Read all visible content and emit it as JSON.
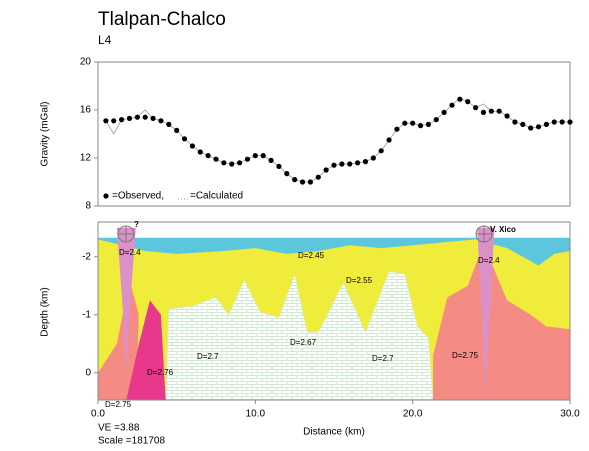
{
  "chart_data": [
    {
      "type": "scatter",
      "title": "Tlalpan-Chalco",
      "subtitle": "L4",
      "ylabel": "Gravity (mGal)",
      "xlim": [
        0,
        30
      ],
      "ylim": [
        8,
        20
      ],
      "yticks": [
        8,
        12,
        16,
        20
      ],
      "x": [
        0.5,
        1,
        1.5,
        2,
        2.5,
        3,
        3.5,
        4,
        4.5,
        5,
        5.5,
        6,
        6.5,
        7,
        7.5,
        8,
        8.5,
        9,
        9.5,
        10,
        10.5,
        11,
        11.5,
        12,
        12.5,
        13,
        13.5,
        14,
        14.5,
        15,
        15.5,
        16,
        16.5,
        17,
        17.5,
        18,
        18.5,
        19,
        19.5,
        20,
        20.5,
        21,
        21.5,
        22,
        22.5,
        23,
        23.5,
        24,
        24.5,
        25,
        25.5,
        26,
        26.5,
        27,
        27.5,
        28,
        28.5,
        29,
        29.5,
        30
      ],
      "series": [
        {
          "name": "=Observed,",
          "color": "#000000",
          "style": "dots",
          "values": [
            15.1,
            15.1,
            15.2,
            15.3,
            15.4,
            15.4,
            15.3,
            15.1,
            14.8,
            14.3,
            13.6,
            13.0,
            12.5,
            12.2,
            11.9,
            11.6,
            11.5,
            11.6,
            11.9,
            12.2,
            12.2,
            11.8,
            11.3,
            10.7,
            10.2,
            10.0,
            10.0,
            10.4,
            11.0,
            11.4,
            11.5,
            11.5,
            11.6,
            11.7,
            12.0,
            12.6,
            13.5,
            14.4,
            14.9,
            14.9,
            14.7,
            14.8,
            15.2,
            15.8,
            16.4,
            16.9,
            16.7,
            16.2,
            15.8,
            15.9,
            15.9,
            15.5,
            15.0,
            14.8,
            14.5,
            14.6,
            14.8,
            15.0,
            15.0,
            15.0
          ]
        },
        {
          "name": "=Calculated",
          "color": "#9a9a9a",
          "style": "line",
          "values": [
            15.1,
            14.0,
            15.2,
            15.3,
            15.4,
            16.0,
            15.3,
            15.1,
            14.8,
            14.3,
            13.6,
            13.0,
            12.5,
            12.2,
            11.9,
            11.6,
            11.5,
            11.6,
            11.9,
            12.2,
            12.2,
            11.8,
            11.3,
            10.7,
            10.2,
            10.0,
            10.0,
            10.4,
            11.0,
            11.4,
            11.5,
            11.5,
            11.6,
            11.7,
            12.0,
            12.6,
            13.5,
            14.4,
            14.9,
            14.9,
            14.7,
            14.8,
            15.2,
            15.8,
            16.4,
            17.0,
            16.7,
            16.2,
            16.5,
            15.9,
            15.9,
            15.5,
            15.0,
            14.8,
            14.5,
            14.6,
            14.8,
            15.0,
            15.0,
            15.0
          ]
        }
      ]
    },
    {
      "type": "section",
      "xlabel": "Distance (km)",
      "ylabel": "Depth (km)",
      "xlim": [
        0,
        30
      ],
      "ylim": [
        0.47,
        -2.6
      ],
      "xticks": [
        {
          "value": 0,
          "label": "0.0"
        },
        {
          "value": 10,
          "label": "10.0"
        },
        {
          "value": 20,
          "label": "20.0"
        },
        {
          "value": 30,
          "label": "30.0"
        }
      ],
      "yticks": [
        -2,
        -1,
        0
      ],
      "bodies": [
        {
          "color": "#5cc6dc",
          "points": [
            [
              0,
              -2.33
            ],
            [
              30,
              -2.33
            ],
            [
              30,
              0.47
            ],
            [
              0,
              0.47
            ]
          ]
        },
        {
          "color": "#f0ec3c",
          "points": [
            [
              0,
              -2.3
            ],
            [
              1.5,
              -2.2
            ],
            [
              3,
              -2.1
            ],
            [
              5,
              -2.05
            ],
            [
              8,
              -2.1
            ],
            [
              10,
              -2.15
            ],
            [
              12,
              -2.05
            ],
            [
              14,
              -2.1
            ],
            [
              16,
              -2.2
            ],
            [
              18,
              -2.15
            ],
            [
              20,
              -2.2
            ],
            [
              22,
              -2.25
            ],
            [
              24,
              -2.3
            ],
            [
              26,
              -2.15
            ],
            [
              28,
              -1.85
            ],
            [
              29,
              -2.05
            ],
            [
              30,
              -2.1
            ],
            [
              30,
              0.47
            ],
            [
              0,
              0.47
            ]
          ]
        },
        {
          "color": "hatch",
          "points": [
            [
              4.3,
              0.47
            ],
            [
              4.5,
              -1.1
            ],
            [
              6,
              -1.15
            ],
            [
              7.5,
              -1.3
            ],
            [
              8.3,
              -1.0
            ],
            [
              9.3,
              -1.6
            ],
            [
              10.3,
              -1.05
            ],
            [
              11.5,
              -0.95
            ],
            [
              12.5,
              -1.7
            ],
            [
              13.3,
              -0.7
            ],
            [
              14,
              -0.7
            ],
            [
              15.6,
              -1.55
            ],
            [
              17,
              -0.7
            ],
            [
              18.5,
              -1.75
            ],
            [
              19.5,
              -1.7
            ],
            [
              20.3,
              -0.8
            ],
            [
              21,
              -0.6
            ],
            [
              21.3,
              0.47
            ]
          ]
        },
        {
          "color": "#f48c84",
          "points": [
            [
              0,
              0.0
            ],
            [
              1.2,
              -0.5
            ],
            [
              2.0,
              -1.6
            ],
            [
              2.6,
              -1.0
            ],
            [
              2.4,
              0.47
            ],
            [
              0,
              0.47
            ]
          ]
        },
        {
          "color": "#e8388c",
          "points": [
            [
              1.8,
              0.47
            ],
            [
              2.6,
              -0.5
            ],
            [
              3.3,
              -1.25
            ],
            [
              4.0,
              -1.0
            ],
            [
              4.3,
              0.47
            ]
          ]
        },
        {
          "color": "#dc90c8",
          "points": [
            [
              1.2,
              -2.5
            ],
            [
              2.4,
              -2.5
            ],
            [
              2.0,
              -1.0
            ],
            [
              1.8,
              0.0
            ],
            [
              1.6,
              -1.0
            ]
          ]
        },
        {
          "color": "#f48c84",
          "points": [
            [
              21.3,
              0.47
            ],
            [
              21.3,
              -0.3
            ],
            [
              22.2,
              -1.3
            ],
            [
              23.5,
              -1.5
            ],
            [
              24.2,
              -2.0
            ],
            [
              25,
              -1.9
            ],
            [
              26,
              -1.25
            ],
            [
              27.5,
              -1.0
            ],
            [
              28.5,
              -0.8
            ],
            [
              30,
              -0.75
            ],
            [
              30,
              0.47
            ]
          ]
        },
        {
          "color": "#dc90c8",
          "points": [
            [
              24.1,
              -2.5
            ],
            [
              25.2,
              -2.5
            ],
            [
              24.9,
              -1.0
            ],
            [
              24.6,
              0.47
            ],
            [
              24.4,
              -1.0
            ]
          ]
        }
      ],
      "labels": [
        "D=2.4",
        "D=2.45",
        "D=2.55",
        "D=2.7",
        "D=2.67",
        "D=2.7",
        "D=2.76",
        "D=2.4",
        "D=2.75",
        "D=2.75"
      ],
      "annotations": [
        "?",
        "V. Xico",
        "VE =3.88",
        "Scale =181708"
      ]
    }
  ]
}
